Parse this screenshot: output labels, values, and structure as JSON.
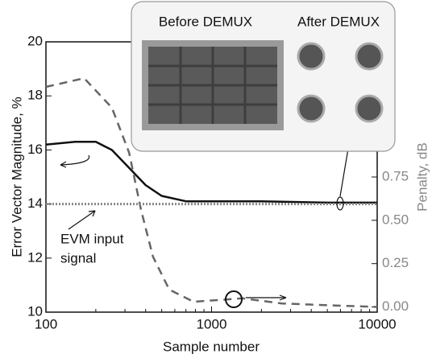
{
  "chart_data": {
    "type": "line",
    "xlabel": "Sample number",
    "ylabel": "Error Vector Magnitude, %",
    "y2label": "Penalty, dB",
    "xscale": "log",
    "xlim": [
      100,
      10000
    ],
    "xticks": [
      100,
      1000,
      10000
    ],
    "ylim": [
      10,
      20
    ],
    "yticks": [
      10,
      12,
      14,
      16,
      18,
      20
    ],
    "y2lim": [
      -0.03,
      1.53
    ],
    "y2ticks": [
      {
        "value": 0,
        "label": "0.00"
      },
      {
        "value": 0.25,
        "label": "0.25"
      },
      {
        "value": 0.5,
        "label": "0.50"
      },
      {
        "value": 0.75,
        "label": "0.75"
      }
    ],
    "series": [
      {
        "color": "#111111",
        "dash": "solid",
        "axis": "y",
        "x": [
          100,
          150,
          200,
          250,
          300,
          400,
          500,
          700,
          1000,
          2000,
          5000,
          10000
        ],
        "values": [
          16.2,
          16.3,
          16.3,
          16.0,
          15.5,
          14.7,
          14.3,
          14.1,
          14.1,
          14.1,
          14.05,
          14.05
        ]
      },
      {
        "color": "#666666",
        "dash": "dashed",
        "axis": "y2",
        "x": [
          100,
          170,
          250,
          318,
          375,
          443,
          555,
          780,
          1530,
          2660,
          5000,
          10000
        ],
        "values": [
          1.27,
          1.32,
          1.15,
          0.89,
          0.56,
          0.29,
          0.1,
          0.03,
          0.05,
          0.02,
          0.01,
          0.0
        ]
      },
      {
        "color": "#888888",
        "dash": "dotted",
        "axis": "y",
        "x": [
          100,
          10000
        ],
        "values": [
          14.0,
          14.0
        ]
      }
    ],
    "annotations": [
      "EVM input",
      "signal",
      "Before DEMUX",
      "After DEMUX"
    ]
  }
}
